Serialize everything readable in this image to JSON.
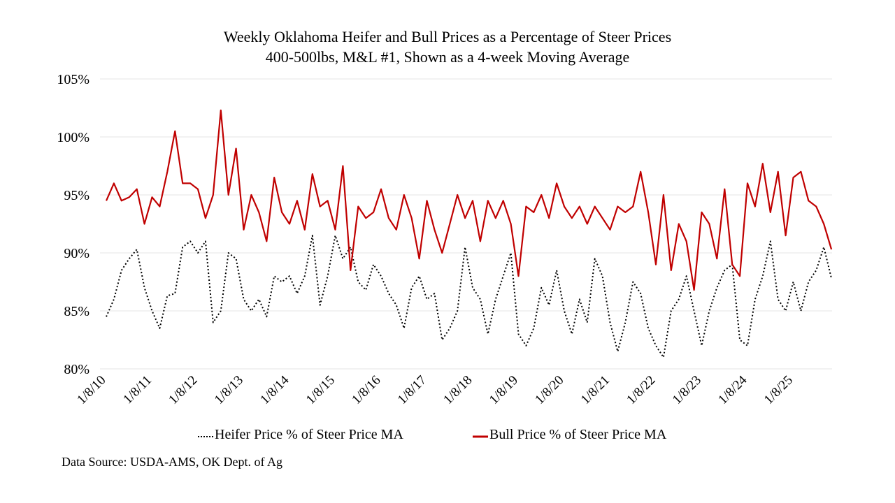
{
  "chart_data": {
    "type": "line",
    "title": "Weekly Oklahoma Heifer and Bull Prices as a Percentage of Steer Prices",
    "subtitle": "400-500lbs, M&L #1, Shown as a 4-week Moving Average",
    "ylim": [
      80,
      105
    ],
    "yticks": [
      "80%",
      "85%",
      "90%",
      "95%",
      "100%",
      "105%"
    ],
    "ytick_values": [
      80,
      85,
      90,
      95,
      100,
      105
    ],
    "xticks": [
      "1/8/10",
      "1/8/11",
      "1/8/12",
      "1/8/13",
      "1/8/14",
      "1/8/15",
      "1/8/16",
      "1/8/17",
      "1/8/18",
      "1/8/19",
      "1/8/20",
      "1/8/21",
      "1/8/22",
      "1/8/23",
      "1/8/24",
      "1/8/25"
    ],
    "grid": "horizontal",
    "legend_placement": "bottom",
    "x": [
      "2010-01",
      "2010-03",
      "2010-05",
      "2010-07",
      "2010-09",
      "2010-11",
      "2011-01",
      "2011-03",
      "2011-05",
      "2011-07",
      "2011-09",
      "2011-11",
      "2012-01",
      "2012-03",
      "2012-05",
      "2012-07",
      "2012-09",
      "2012-11",
      "2013-01",
      "2013-03",
      "2013-05",
      "2013-07",
      "2013-09",
      "2013-11",
      "2014-01",
      "2014-03",
      "2014-05",
      "2014-07",
      "2014-09",
      "2014-11",
      "2015-01",
      "2015-03",
      "2015-05",
      "2015-07",
      "2015-09",
      "2015-11",
      "2016-01",
      "2016-03",
      "2016-05",
      "2016-07",
      "2016-09",
      "2016-11",
      "2017-01",
      "2017-03",
      "2017-05",
      "2017-07",
      "2017-09",
      "2017-11",
      "2018-01",
      "2018-03",
      "2018-05",
      "2018-07",
      "2018-09",
      "2018-11",
      "2019-01",
      "2019-03",
      "2019-05",
      "2019-07",
      "2019-09",
      "2019-11",
      "2020-01",
      "2020-03",
      "2020-05",
      "2020-07",
      "2020-09",
      "2020-11",
      "2021-01",
      "2021-03",
      "2021-05",
      "2021-07",
      "2021-09",
      "2021-11",
      "2022-01",
      "2022-03",
      "2022-05",
      "2022-07",
      "2022-09",
      "2022-11",
      "2023-01",
      "2023-03",
      "2023-05",
      "2023-07",
      "2023-09",
      "2023-11",
      "2024-01",
      "2024-03",
      "2024-05",
      "2024-07",
      "2024-09",
      "2024-11",
      "2025-01",
      "2025-03",
      "2025-05",
      "2025-07",
      "2025-09",
      "2025-11"
    ],
    "series": [
      {
        "name": "Heifer Price % of Steer Price MA",
        "color": "#000000",
        "style": "dotted",
        "values": [
          84.5,
          86,
          88.5,
          89.5,
          90.3,
          87,
          85,
          83.5,
          86.3,
          86.5,
          90.5,
          91,
          90,
          91,
          84,
          85,
          90,
          89.5,
          86,
          85,
          86,
          84.5,
          88,
          87.5,
          88,
          86.5,
          88,
          91.5,
          85.5,
          88,
          91.5,
          89.5,
          90.5,
          87.5,
          86.8,
          89,
          88,
          86.5,
          85.5,
          83.5,
          87,
          88,
          86,
          86.5,
          82.5,
          83.5,
          85,
          90.5,
          87,
          86,
          83,
          86,
          88,
          90,
          83,
          82,
          83.5,
          87,
          85.5,
          88.5,
          85,
          83,
          86,
          84,
          89.5,
          88,
          84,
          81.5,
          84,
          87.5,
          86.5,
          83.5,
          82,
          81,
          85,
          86,
          88,
          85,
          82,
          85,
          87,
          88.5,
          89,
          82.5,
          82,
          86,
          88,
          91,
          86,
          85,
          87.5,
          85,
          87.5,
          88.5,
          90.5,
          87.8
        ]
      },
      {
        "name": "Bull Price % of Steer Price MA",
        "color": "#c00000",
        "style": "solid",
        "values": [
          94.5,
          96,
          94.5,
          94.8,
          95.5,
          92.5,
          94.8,
          94,
          97,
          100.5,
          96,
          96,
          95.5,
          93,
          95,
          102.3,
          95,
          99,
          92,
          95,
          93.5,
          91,
          96.5,
          93.5,
          92.5,
          94.5,
          92,
          96.8,
          94,
          94.5,
          92,
          97.5,
          88.5,
          94,
          93,
          93.5,
          95.5,
          93,
          92,
          95,
          93,
          89.5,
          94.5,
          92,
          90,
          92.5,
          95,
          93,
          94.5,
          91,
          94.5,
          93,
          94.5,
          92.5,
          88,
          94,
          93.5,
          95,
          93,
          96,
          94,
          93,
          94,
          92.5,
          94,
          93,
          92,
          94,
          93.5,
          94,
          97,
          93.5,
          89,
          95,
          88.5,
          92.5,
          91,
          86.8,
          93.5,
          92.5,
          89.5,
          95.5,
          89,
          88,
          96,
          94,
          97.7,
          93.5,
          97,
          91.5,
          96.5,
          97,
          94.5,
          94,
          92.5,
          90.3
        ]
      }
    ],
    "source": "Data Source: USDA-AMS, OK Dept. of Ag"
  }
}
